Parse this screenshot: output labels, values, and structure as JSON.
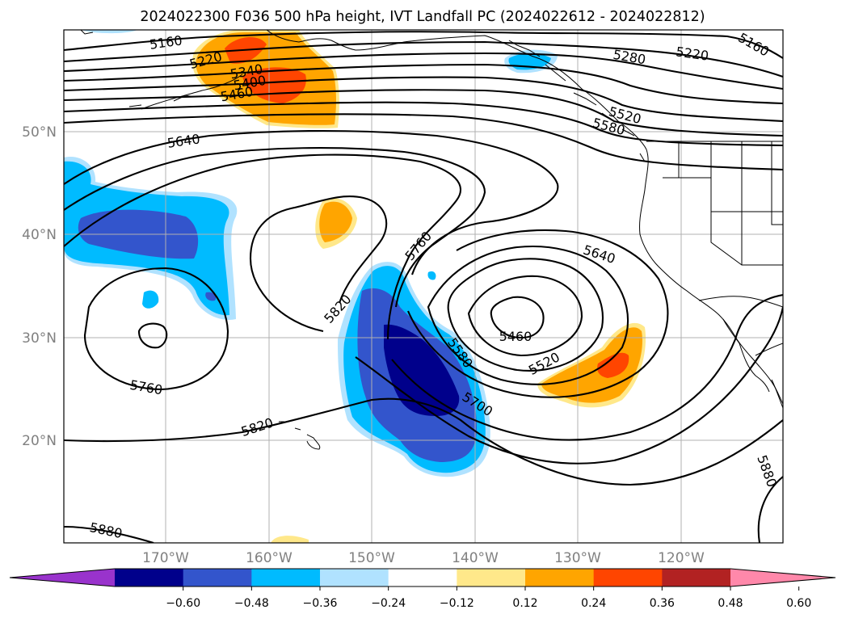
{
  "title": "2024022300 F036 500 hPa height, IVT Landfall PC (2024022612 - 2024022812)",
  "map": {
    "lat_ticks": [
      "50°N",
      "40°N",
      "30°N",
      "20°N"
    ],
    "lon_ticks": [
      "170°W",
      "160°W",
      "150°W",
      "140°W",
      "130°W",
      "120°W"
    ],
    "contour_labels": [
      {
        "text": "5160",
        "rot": -8
      },
      {
        "text": "5220",
        "rot": -15
      },
      {
        "text": "5340",
        "rot": -10
      },
      {
        "text": "5400",
        "rot": -10
      },
      {
        "text": "5460",
        "rot": -10
      },
      {
        "text": "5640",
        "rot": -8
      },
      {
        "text": "5760",
        "rot": -50
      },
      {
        "text": "5820",
        "rot": -48
      },
      {
        "text": "5580",
        "rot": 55
      },
      {
        "text": "5700",
        "rot": 32
      },
      {
        "text": "5460",
        "rot": 0
      },
      {
        "text": "5520",
        "rot": -28
      },
      {
        "text": "5640",
        "rot": 18
      },
      {
        "text": "5760",
        "rot": 10
      },
      {
        "text": "5820",
        "rot": -18
      },
      {
        "text": "5880",
        "rot": 12
      },
      {
        "text": "5880",
        "rot": 70
      },
      {
        "text": "5280",
        "rot": 10
      },
      {
        "text": "5220",
        "rot": 8
      },
      {
        "text": "5160",
        "rot": 30
      },
      {
        "text": "5520",
        "rot": 15
      },
      {
        "text": "5580",
        "rot": 15
      }
    ]
  },
  "colorbar": {
    "ticks": [
      "−0.60",
      "−0.48",
      "−0.36",
      "−0.24",
      "−0.12",
      "0.12",
      "0.24",
      "0.36",
      "0.48",
      "0.60"
    ],
    "colors": [
      "#9933cc",
      "#00008b",
      "#3355cc",
      "#00bbff",
      "#b0e2ff",
      "#ffffff",
      "#ffe88a",
      "#ffa500",
      "#ff4500",
      "#b22222",
      "#ff88aa"
    ]
  }
}
